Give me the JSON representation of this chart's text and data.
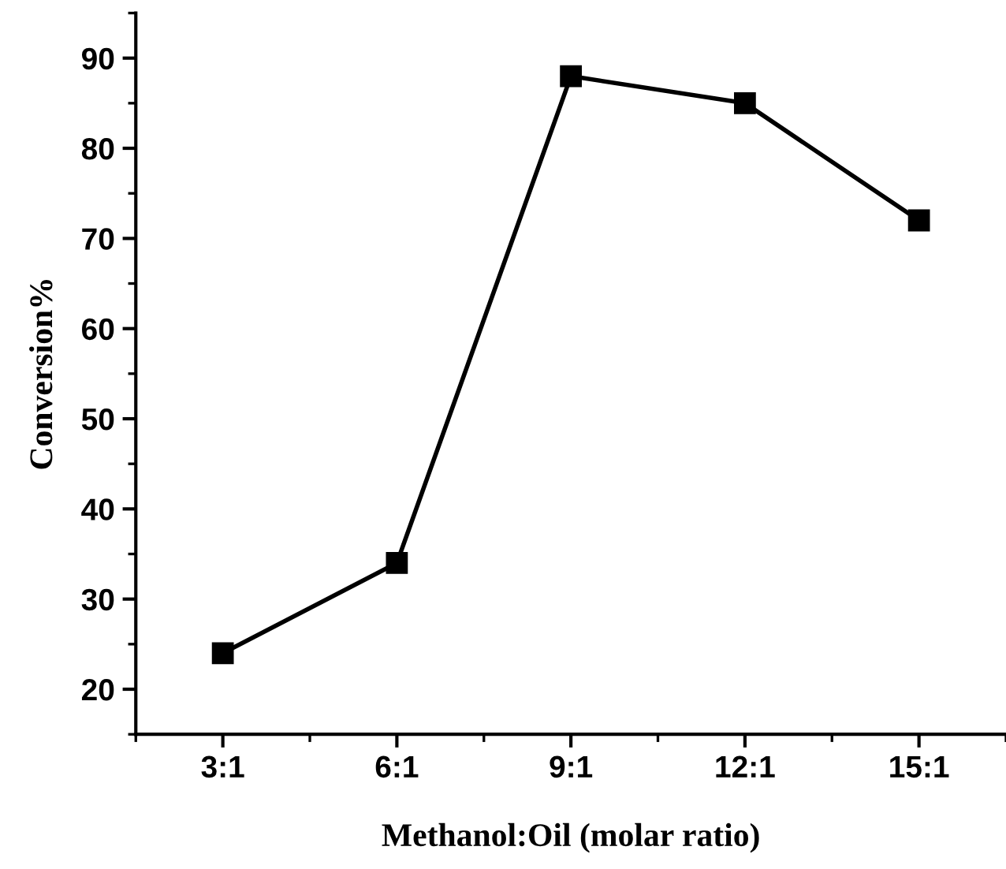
{
  "chart_data": {
    "type": "line",
    "xlabel": "Methanol:Oil (molar ratio)",
    "ylabel": "Conversion%",
    "categories": [
      "3:1",
      "6:1",
      "9:1",
      "12:1",
      "15:1"
    ],
    "series": [
      {
        "color": "#000000",
        "values": [
          24,
          34,
          88,
          85,
          72
        ]
      }
    ],
    "ylim": [
      15,
      95
    ],
    "yticks": [
      20,
      30,
      40,
      50,
      60,
      70,
      80,
      90
    ],
    "marker": "square",
    "line_style": "solid",
    "grid": false,
    "legend": false
  }
}
